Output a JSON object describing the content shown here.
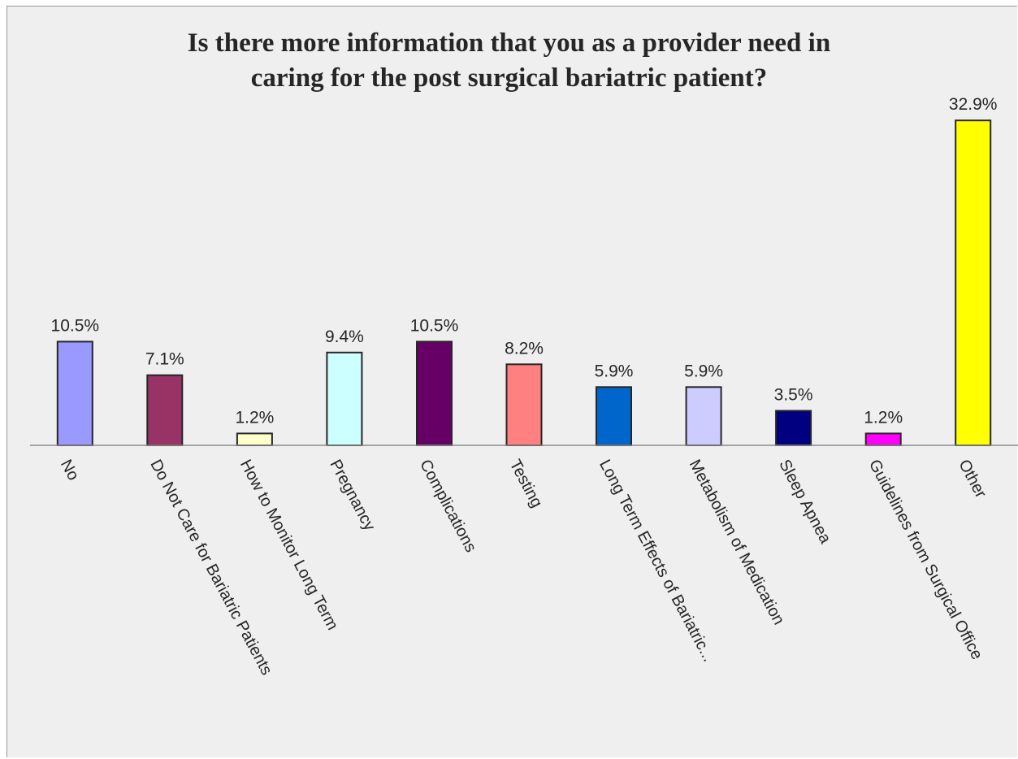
{
  "chart_data": {
    "type": "bar",
    "title": "Is there more information that you as a provider need in\ncaring for the post surgical bariatric patient?",
    "xlabel": "",
    "ylabel": "",
    "ylim": [
      0,
      33.9
    ],
    "grid": false,
    "legend": "none",
    "value_format": "percent, one decimal",
    "categories": [
      "No",
      "Do Not Care for Bariatric Patients",
      "How to Monitor Long Term",
      "Pregnancy",
      "Complications",
      "Testing",
      "Long Term Effects of Bariatric...",
      "Metabolism of Medication",
      "Sleep Apnea",
      "Guidelines from Surgical Office",
      "Other"
    ],
    "values": [
      10.5,
      7.1,
      1.2,
      9.4,
      10.5,
      8.2,
      5.9,
      5.9,
      3.5,
      1.2,
      32.9
    ],
    "data_labels": [
      "10.5%",
      "7.1%",
      "1.2%",
      "9.4%",
      "10.5%",
      "8.2%",
      "5.9%",
      "5.9%",
      "3.5%",
      "1.2%",
      "32.9%"
    ],
    "colors": [
      "#9999ff",
      "#993366",
      "#ffffcc",
      "#ccffff",
      "#660066",
      "#ff8080",
      "#0066cc",
      "#ccccff",
      "#000080",
      "#ff00ff",
      "#ffff00"
    ]
  }
}
